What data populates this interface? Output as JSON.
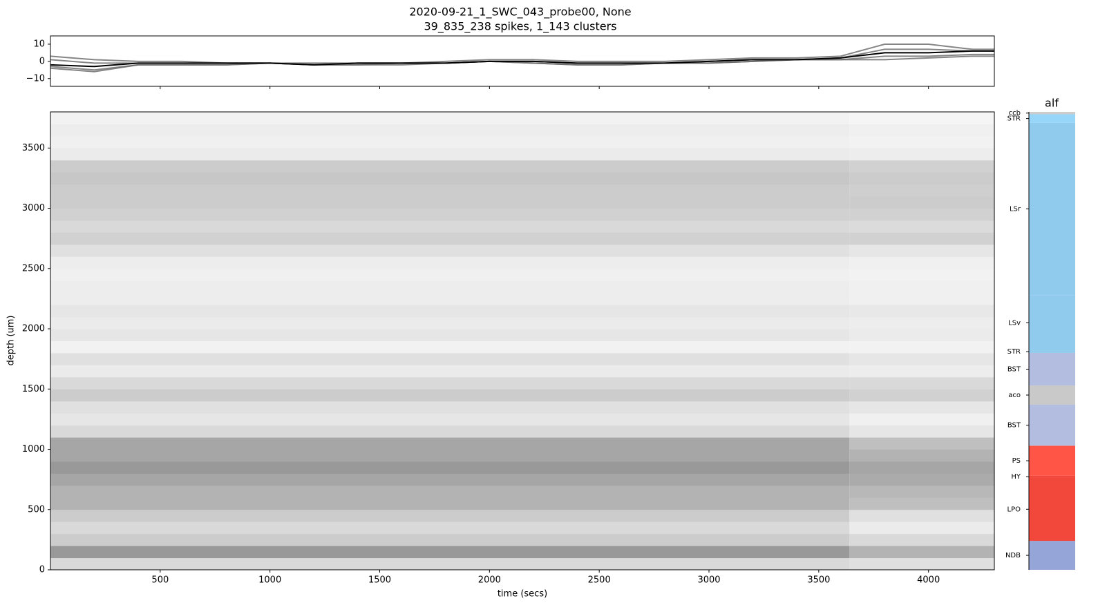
{
  "chart_data": [
    {
      "type": "line",
      "title": "2020-09-21_1_SWC_043_probe00, None",
      "subtitle": "39_835_238 spikes, 1_143 clusters",
      "x": [
        0,
        200,
        400,
        600,
        800,
        1000,
        1200,
        1400,
        1600,
        1800,
        2000,
        2200,
        2400,
        2600,
        2800,
        3000,
        3200,
        3400,
        3600,
        3800,
        4000,
        4200,
        4300
      ],
      "series": [
        {
          "color": "#666666",
          "values": [
            3,
            1,
            0,
            0,
            -1,
            -1,
            -1,
            -1,
            -1,
            0,
            1,
            1,
            0,
            0,
            0,
            1,
            2,
            2,
            3,
            10,
            10,
            7,
            7
          ]
        },
        {
          "color": "#666666",
          "values": [
            1,
            -1,
            -1,
            -1,
            -1,
            -1,
            -2,
            -1,
            -1,
            -1,
            0,
            0,
            -1,
            -1,
            -1,
            0,
            1,
            1,
            2,
            7,
            7,
            6,
            6
          ]
        },
        {
          "color": "#666666",
          "values": [
            -4,
            -6,
            -2,
            -2,
            -2,
            -1,
            -2,
            -2,
            -2,
            -1,
            0,
            -1,
            -2,
            -2,
            -1,
            -1,
            0,
            1,
            1,
            1,
            2,
            3,
            3
          ]
        },
        {
          "color": "#666666",
          "values": [
            -3,
            -5,
            -2,
            -2,
            -2,
            -1,
            -2,
            -2,
            -1,
            -1,
            0,
            -1,
            -2,
            -2,
            -1,
            -1,
            0,
            1,
            1,
            3,
            3,
            4,
            4
          ]
        },
        {
          "color": "#000000",
          "values": [
            -2,
            -3,
            -1,
            -1,
            -1,
            -1,
            -2,
            -1,
            -1,
            -1,
            0,
            0,
            -1,
            -1,
            -1,
            0,
            1,
            1,
            2,
            5,
            5,
            6,
            6
          ]
        }
      ],
      "xlim": [
        0,
        4300
      ],
      "xticks": [
        500,
        1000,
        1500,
        2000,
        2500,
        3000,
        3500,
        4000
      ],
      "ylim": [
        -14.5,
        14.8
      ],
      "yticks": [
        10,
        0,
        {
          "value": -10,
          "label": "−10"
        }
      ]
    },
    {
      "type": "heatmap",
      "xlabel": "time (secs)",
      "ylabel": "depth (um)",
      "xbins": [
        0,
        3640,
        4300
      ],
      "ybins": [
        0,
        100,
        200,
        300,
        400,
        500,
        600,
        700,
        800,
        900,
        1000,
        1100,
        1200,
        1300,
        1400,
        1500,
        1600,
        1700,
        1800,
        1900,
        2000,
        2100,
        2200,
        2300,
        2400,
        2500,
        2600,
        2700,
        2800,
        2900,
        3000,
        3100,
        3200,
        3300,
        3400,
        3500,
        3600,
        3700,
        3800
      ],
      "values": [
        [
          0.15,
          0.12
        ],
        [
          0.4,
          0.3
        ],
        [
          0.2,
          0.15
        ],
        [
          0.15,
          0.08
        ],
        [
          0.2,
          0.12
        ],
        [
          0.3,
          0.25
        ],
        [
          0.3,
          0.28
        ],
        [
          0.35,
          0.33
        ],
        [
          0.4,
          0.35
        ],
        [
          0.35,
          0.3
        ],
        [
          0.35,
          0.25
        ],
        [
          0.15,
          0.1
        ],
        [
          0.1,
          0.06
        ],
        [
          0.12,
          0.1
        ],
        [
          0.2,
          0.18
        ],
        [
          0.15,
          0.15
        ],
        [
          0.08,
          0.07
        ],
        [
          0.12,
          0.1
        ],
        [
          0.05,
          0.05
        ],
        [
          0.1,
          0.08
        ],
        [
          0.08,
          0.07
        ],
        [
          0.1,
          0.09
        ],
        [
          0.07,
          0.06
        ],
        [
          0.07,
          0.06
        ],
        [
          0.06,
          0.05
        ],
        [
          0.07,
          0.06
        ],
        [
          0.12,
          0.1
        ],
        [
          0.18,
          0.18
        ],
        [
          0.15,
          0.14
        ],
        [
          0.18,
          0.18
        ],
        [
          0.2,
          0.2
        ],
        [
          0.2,
          0.19
        ],
        [
          0.22,
          0.2
        ],
        [
          0.2,
          0.18
        ],
        [
          0.08,
          0.07
        ],
        [
          0.06,
          0.05
        ],
        [
          0.07,
          0.06
        ],
        [
          0.05,
          0.04
        ]
      ],
      "xlim": [
        0,
        4300
      ],
      "xticks": [
        500,
        1000,
        1500,
        2000,
        2500,
        3000,
        3500,
        4000
      ],
      "ylim": [
        0,
        3800
      ],
      "yticks": [
        0,
        500,
        1000,
        1500,
        2000,
        2500,
        3000,
        3500
      ]
    },
    {
      "type": "bar",
      "title": "alf",
      "categories": [
        "NDB",
        "LPO",
        "HY",
        "PS",
        "BST",
        "aco",
        "BST",
        "STR",
        "LSv",
        "LSr",
        "STR",
        "ccb"
      ],
      "ranges": [
        [
          0,
          240
        ],
        [
          240,
          765
        ],
        [
          765,
          780
        ],
        [
          780,
          1030
        ],
        [
          1030,
          1370
        ],
        [
          1370,
          1530
        ],
        [
          1530,
          1800
        ],
        [
          1800,
          1820
        ],
        [
          1820,
          2280
        ],
        [
          2280,
          3710
        ],
        [
          3710,
          3780
        ],
        [
          3780,
          3800
        ]
      ],
      "colors": [
        "#95a5d8",
        "#f2483b",
        "#f2483b",
        "#ff5547",
        "#b2bde0",
        "#c9c9c9",
        "#b2bde0",
        "#90cbed",
        "#90cbed",
        "#90cbed",
        "#98d6f9",
        "#cccccc"
      ],
      "ylim": [
        0,
        3800
      ]
    }
  ]
}
